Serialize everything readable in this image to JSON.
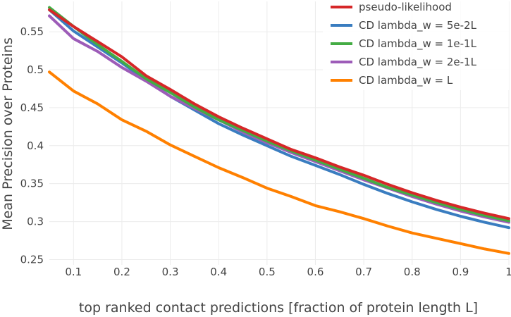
{
  "chart_data": {
    "type": "line",
    "xlabel": "top ranked contact predictions [fraction of protein length L]",
    "ylabel": "Mean Precision over Proteins",
    "xlim": [
      0.05,
      1.0
    ],
    "ylim": [
      0.243,
      0.59
    ],
    "x_ticks": [
      0.1,
      0.2,
      0.3,
      0.4,
      0.5,
      0.6,
      0.7,
      0.8,
      0.9,
      1.0
    ],
    "x_tick_labels": [
      "0.1",
      "0.2",
      "0.3",
      "0.4",
      "0.5",
      "0.6",
      "0.7",
      "0.8",
      "0.9",
      "1"
    ],
    "y_ticks": [
      0.25,
      0.3,
      0.35,
      0.4,
      0.45,
      0.5,
      0.55
    ],
    "y_tick_labels": [
      "0.25",
      "0.3",
      "0.35",
      "0.4",
      "0.45",
      "0.5",
      "0.55"
    ],
    "grid": true,
    "legend_position": "top-right",
    "x": [
      0.05,
      0.1,
      0.15,
      0.2,
      0.25,
      0.3,
      0.35,
      0.4,
      0.45,
      0.5,
      0.55,
      0.6,
      0.65,
      0.7,
      0.75,
      0.8,
      0.85,
      0.9,
      0.95,
      1.0
    ],
    "series": [
      {
        "name": "pseudo-likelihood",
        "color": "#d62728",
        "values": [
          0.579,
          0.557,
          0.537,
          0.517,
          0.492,
          0.474,
          0.455,
          0.438,
          0.423,
          0.409,
          0.395,
          0.384,
          0.372,
          0.361,
          0.349,
          0.338,
          0.328,
          0.319,
          0.311,
          0.304
        ]
      },
      {
        "name": "CD lambda_w = 5e-2L",
        "color": "#3a7dc0",
        "values": [
          0.579,
          0.551,
          0.53,
          0.509,
          0.486,
          0.465,
          0.447,
          0.429,
          0.414,
          0.4,
          0.386,
          0.374,
          0.362,
          0.349,
          0.337,
          0.326,
          0.316,
          0.307,
          0.299,
          0.292
        ]
      },
      {
        "name": "CD lambda_w = 1e-1L",
        "color": "#44ac44",
        "values": [
          0.582,
          0.557,
          0.533,
          0.511,
          0.488,
          0.47,
          0.451,
          0.434,
          0.42,
          0.406,
          0.393,
          0.381,
          0.369,
          0.357,
          0.345,
          0.335,
          0.325,
          0.316,
          0.308,
          0.301
        ]
      },
      {
        "name": "CD lambda_w = 2e-1L",
        "color": "#9d5cb8",
        "values": [
          0.571,
          0.541,
          0.524,
          0.503,
          0.485,
          0.465,
          0.449,
          0.434,
          0.418,
          0.404,
          0.391,
          0.379,
          0.367,
          0.355,
          0.344,
          0.333,
          0.323,
          0.314,
          0.306,
          0.299
        ]
      },
      {
        "name": "CD lambda_w = L",
        "color": "#ff8000",
        "values": [
          0.497,
          0.472,
          0.455,
          0.434,
          0.419,
          0.401,
          0.386,
          0.371,
          0.358,
          0.344,
          0.333,
          0.321,
          0.313,
          0.304,
          0.294,
          0.285,
          0.278,
          0.271,
          0.264,
          0.258
        ]
      }
    ]
  }
}
